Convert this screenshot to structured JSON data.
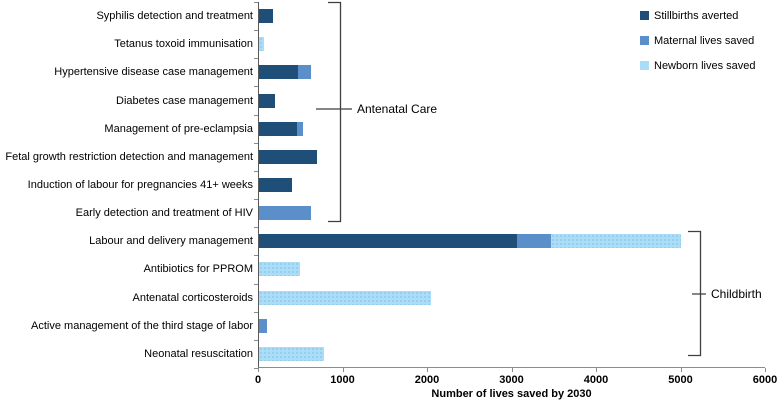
{
  "chart_data": {
    "type": "bar",
    "orientation": "horizontal",
    "stacked": true,
    "xlabel": "Number of lives saved by 2030",
    "xlim": [
      0,
      6000
    ],
    "xticks": [
      0,
      1000,
      2000,
      3000,
      4000,
      5000,
      6000
    ],
    "grid": false,
    "legend_position": "top-right",
    "legend": [
      {
        "label": "Stillbirths averted",
        "color": "#1f4e79"
      },
      {
        "label": "Maternal lives saved",
        "color": "#5b8fc9"
      },
      {
        "label": "Newborn lives saved",
        "color": "#aaddf8"
      }
    ],
    "rows": [
      {
        "label": "Syphilis detection and treatment",
        "group": "Antenatal Care",
        "values": [
          160,
          0,
          0
        ]
      },
      {
        "label": "Tetanus toxoid immunisation",
        "group": "Antenatal Care",
        "values": [
          0,
          0,
          60
        ]
      },
      {
        "label": "Hypertensive disease case management",
        "group": "Antenatal Care",
        "values": [
          465,
          145,
          0
        ]
      },
      {
        "label": "Diabetes case management",
        "group": "Antenatal Care",
        "values": [
          190,
          0,
          0
        ]
      },
      {
        "label": "Management of pre-eclampsia",
        "group": "Antenatal Care",
        "values": [
          455,
          70,
          0
        ]
      },
      {
        "label": "Fetal growth restriction detection and management",
        "group": "Antenatal Care",
        "values": [
          690,
          0,
          0
        ]
      },
      {
        "label": "Induction of labour for pregnancies 41+ weeks",
        "group": "Antenatal Care",
        "values": [
          390,
          0,
          0
        ]
      },
      {
        "label": "Early detection and treatment of HIV",
        "group": "Antenatal Care",
        "values": [
          0,
          610,
          0
        ]
      },
      {
        "label": "Labour and delivery management",
        "group": "Childbirth",
        "values": [
          3050,
          400,
          1550
        ]
      },
      {
        "label": "Antibiotics for PPROM",
        "group": "Childbirth",
        "values": [
          0,
          0,
          490
        ]
      },
      {
        "label": "Antenatal corticosteroids",
        "group": "Childbirth",
        "values": [
          0,
          0,
          2030
        ]
      },
      {
        "label": "Active management of the third stage of labor",
        "group": "Childbirth",
        "values": [
          0,
          90,
          0
        ]
      },
      {
        "label": "Neonatal resuscitation",
        "group": "Childbirth",
        "values": [
          0,
          0,
          770
        ]
      }
    ],
    "groups": [
      {
        "label": "Antenatal Care",
        "row_span": [
          0,
          7
        ]
      },
      {
        "label": "Childbirth",
        "row_span": [
          8,
          12
        ]
      }
    ]
  }
}
